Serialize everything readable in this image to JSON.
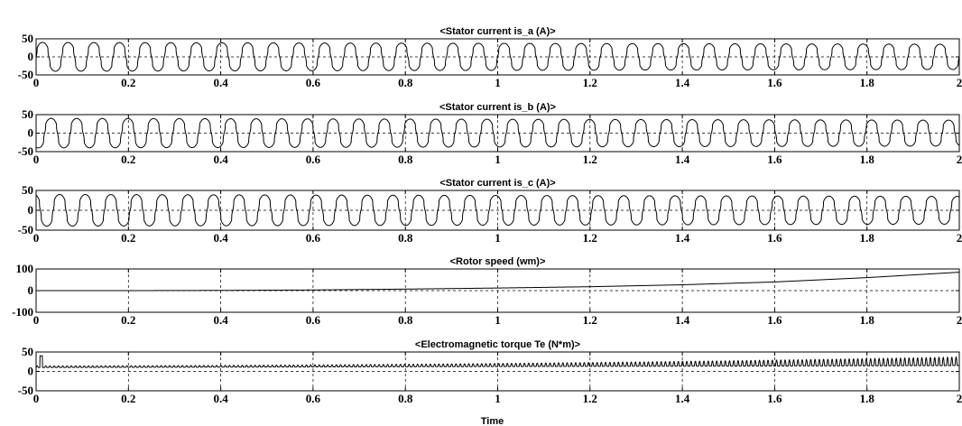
{
  "chart_data": [
    {
      "type": "line",
      "title": "<Stator current is_a (A)>",
      "xlim": [
        0,
        2
      ],
      "ylim": [
        -50,
        50
      ],
      "xticks": [
        "0",
        "0.2",
        "0.4",
        "0.6",
        "0.8",
        "1",
        "1.2",
        "1.4",
        "1.6",
        "1.8",
        "2"
      ],
      "yticks": [
        "50",
        "0",
        "-50"
      ],
      "grid": true,
      "series": [
        {
          "kind": "pulsed_sine",
          "frequency_hz": 18,
          "amplitude": 40,
          "phase_deg": 0,
          "amplitude_end": 35
        }
      ]
    },
    {
      "type": "line",
      "title": "<Stator current is_b (A)>",
      "xlim": [
        0,
        2
      ],
      "ylim": [
        -50,
        50
      ],
      "xticks": [
        "0",
        "0.2",
        "0.4",
        "0.6",
        "0.8",
        "1",
        "1.2",
        "1.4",
        "1.6",
        "1.8",
        "2"
      ],
      "yticks": [
        "50",
        "0",
        "-50"
      ],
      "grid": true,
      "series": [
        {
          "kind": "pulsed_sine",
          "frequency_hz": 18,
          "amplitude": 40,
          "phase_deg": -120,
          "amplitude_end": 35
        }
      ]
    },
    {
      "type": "line",
      "title": "<Stator current is_c (A)>",
      "xlim": [
        0,
        2
      ],
      "ylim": [
        -50,
        50
      ],
      "xticks": [
        "0",
        "0.2",
        "0.4",
        "0.6",
        "0.8",
        "1",
        "1.2",
        "1.4",
        "1.6",
        "1.8",
        "2"
      ],
      "yticks": [
        "50",
        "0",
        "-50"
      ],
      "grid": true,
      "series": [
        {
          "kind": "pulsed_sine",
          "frequency_hz": 18,
          "amplitude": 40,
          "phase_deg": 120,
          "amplitude_end": 35
        }
      ]
    },
    {
      "type": "line",
      "title": "<Rotor speed (wm)>",
      "xlim": [
        0,
        2
      ],
      "ylim": [
        -100,
        100
      ],
      "xticks": [
        "0",
        "0.2",
        "0.4",
        "0.6",
        "0.8",
        "1",
        "1.2",
        "1.4",
        "1.6",
        "1.8",
        "2"
      ],
      "yticks": [
        "100",
        "0",
        "-100"
      ],
      "grid": true,
      "series": [
        {
          "kind": "points",
          "x": [
            0,
            0.2,
            0.4,
            0.6,
            0.8,
            1.0,
            1.2,
            1.4,
            1.6,
            1.8,
            2.0
          ],
          "y": [
            0,
            0,
            1,
            3,
            7,
            12,
            18,
            27,
            40,
            60,
            85
          ]
        }
      ]
    },
    {
      "type": "line",
      "title": "<Electromagnetic torque Te (N*m)>",
      "xlim": [
        0,
        2
      ],
      "ylim": [
        -50,
        50
      ],
      "xticks": [
        "0",
        "0.2",
        "0.4",
        "0.6",
        "0.8",
        "1",
        "1.2",
        "1.4",
        "1.6",
        "1.8",
        "2"
      ],
      "yticks": [
        "50",
        "0",
        "-50"
      ],
      "xlabel": "Time",
      "grid": true,
      "series": [
        {
          "kind": "ripple",
          "frequency_hz": 108,
          "base_start": 10,
          "base_end": 15,
          "amp_start": 4,
          "amp_end": 22,
          "initial_spike": 40
        }
      ]
    }
  ]
}
